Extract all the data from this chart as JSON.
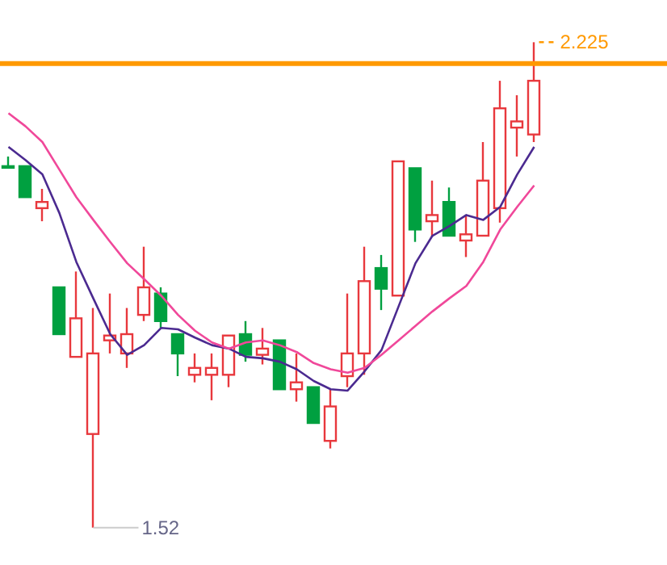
{
  "chart_data": {
    "type": "candlestick",
    "categories": [
      null,
      null,
      null,
      null,
      null,
      null,
      null,
      null,
      null,
      null,
      null,
      null,
      null,
      null,
      null,
      null,
      null,
      null,
      null,
      null,
      null,
      null,
      null,
      null,
      null,
      null,
      null,
      null,
      null,
      null,
      null,
      null
    ],
    "tick_labels": false,
    "marker": "none",
    "series": [
      {
        "ohlc": [
          [
            2.045,
            2.059,
            2.042,
            2.044
          ],
          [
            2.045,
            2.045,
            2.0,
            2.0
          ],
          [
            1.984,
            2.012,
            1.965,
            1.993
          ],
          [
            1.869,
            1.869,
            1.801,
            1.801
          ],
          [
            1.768,
            1.892,
            1.768,
            1.824
          ],
          [
            1.656,
            1.839,
            1.52,
            1.773
          ],
          [
            1.792,
            1.86,
            1.773,
            1.799
          ],
          [
            1.773,
            1.839,
            1.752,
            1.801
          ],
          [
            1.829,
            1.928,
            1.82,
            1.869
          ],
          [
            1.86,
            1.869,
            1.81,
            1.82
          ],
          [
            1.801,
            1.801,
            1.74,
            1.773
          ],
          [
            1.742,
            1.773,
            1.731,
            1.752
          ],
          [
            1.742,
            1.773,
            1.705,
            1.752
          ],
          [
            1.742,
            1.799,
            1.724,
            1.799
          ],
          [
            1.801,
            1.82,
            1.761,
            1.771
          ],
          [
            1.771,
            1.81,
            1.757,
            1.78
          ],
          [
            1.792,
            1.792,
            1.721,
            1.721
          ],
          [
            1.721,
            1.773,
            1.703,
            1.731
          ],
          [
            1.724,
            1.724,
            1.672,
            1.672
          ],
          [
            1.646,
            1.721,
            1.635,
            1.696
          ],
          [
            1.74,
            1.86,
            1.724,
            1.773
          ],
          [
            1.773,
            1.928,
            1.742,
            1.878
          ],
          [
            1.897,
            1.916,
            1.836,
            1.867
          ],
          [
            1.857,
            2.052,
            1.857,
            2.052
          ],
          [
            2.042,
            2.042,
            1.935,
            1.953
          ],
          [
            1.965,
            2.024,
            1.942,
            1.974
          ],
          [
            1.993,
            2.014,
            1.944,
            1.944
          ],
          [
            1.937,
            1.974,
            1.913,
            1.946
          ],
          [
            1.944,
            2.08,
            1.944,
            2.024
          ],
          [
            1.984,
            2.169,
            1.963,
            2.129
          ],
          [
            2.101,
            2.148,
            2.059,
            2.11
          ],
          [
            2.091,
            2.225,
            2.08,
            2.169
          ]
        ],
        "colors": [
          "#00a040",
          "#00a040",
          "#e8383d",
          "#00a040",
          "#e8383d",
          "#e8383d",
          "#e8383d",
          "#e8383d",
          "#e8383d",
          "#00a040",
          "#00a040",
          "#e8383d",
          "#e8383d",
          "#e8383d",
          "#00a040",
          "#e8383d",
          "#00a040",
          "#e8383d",
          "#00a040",
          "#e8383d",
          "#e8383d",
          "#e8383d",
          "#00a040",
          "#e8383d",
          "#00a040",
          "#e8383d",
          "#00a040",
          "#e8383d",
          "#e8383d",
          "#e8383d",
          "#e8383d",
          "#e8383d"
        ]
      },
      {
        "type": "line",
        "color": "#4b2a90",
        "values": [
          2.073,
          2.054,
          2.033,
          1.977,
          1.906,
          1.853,
          1.801,
          1.771,
          1.785,
          1.81,
          1.808,
          1.796,
          1.785,
          1.78,
          1.768,
          1.766,
          1.761,
          1.75,
          1.733,
          1.721,
          1.719,
          1.747,
          1.778,
          1.841,
          1.904,
          1.944,
          1.958,
          1.974,
          1.967,
          1.986,
          2.033,
          2.073
        ]
      },
      {
        "type": "line",
        "color": "#f0489a",
        "values": [
          2.122,
          2.103,
          2.08,
          2.04,
          2.0,
          1.967,
          1.935,
          1.904,
          1.881,
          1.857,
          1.829,
          1.806,
          1.789,
          1.78,
          1.789,
          1.792,
          1.785,
          1.775,
          1.759,
          1.75,
          1.745,
          1.752,
          1.771,
          1.792,
          1.813,
          1.834,
          1.853,
          1.871,
          1.906,
          1.953,
          1.986,
          2.017
        ]
      }
    ],
    "ref_lines": [
      {
        "axis": "y",
        "value": 2.194,
        "color": "#ff9900"
      }
    ],
    "annotations": [
      "2.225",
      "1.52"
    ]
  }
}
